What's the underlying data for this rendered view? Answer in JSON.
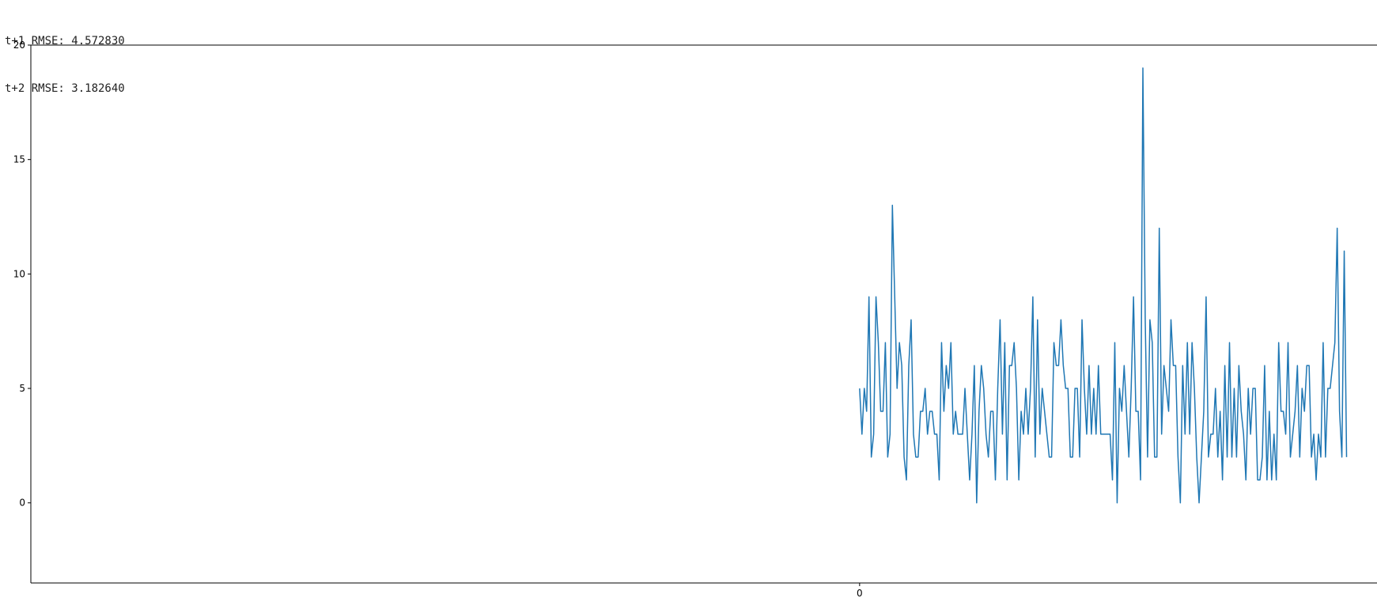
{
  "output": {
    "lines": [
      "t+1 RMSE: 4.572830",
      "t+2 RMSE: 3.182640"
    ]
  },
  "chart_data": {
    "type": "line",
    "title": "",
    "xlabel": "",
    "ylabel": "",
    "xlim": [
      -354,
      221
    ],
    "ylim": [
      -3.5,
      20
    ],
    "xticks": [
      0
    ],
    "yticks": [
      0,
      5,
      10,
      15,
      20
    ],
    "grid": false,
    "colors": {
      "series": "#1f77b4",
      "axes": "#000000"
    },
    "series": [
      {
        "values": [
          5,
          3,
          5,
          4,
          9,
          2,
          3,
          9,
          7,
          4,
          4,
          7,
          2,
          3,
          13,
          9,
          5,
          7,
          6,
          2,
          1,
          6,
          8,
          3,
          2,
          2,
          4,
          4,
          5,
          3,
          4,
          4,
          3,
          3,
          1,
          7,
          4,
          6,
          5,
          7,
          3,
          4,
          3,
          3,
          3,
          5,
          3,
          1,
          3,
          6,
          0,
          4,
          6,
          5,
          3,
          2,
          4,
          4,
          1,
          5,
          8,
          3,
          7,
          1,
          6,
          6,
          7,
          5,
          1,
          4,
          3,
          5,
          3,
          5,
          9,
          2,
          8,
          3,
          5,
          4,
          3,
          2,
          2,
          7,
          6,
          6,
          8,
          6,
          5,
          5,
          2,
          2,
          5,
          5,
          2,
          8,
          5,
          3,
          6,
          3,
          5,
          3,
          6,
          3,
          3,
          3,
          3,
          3,
          1,
          7,
          0,
          5,
          4,
          6,
          4,
          2,
          5,
          9,
          4,
          4,
          1,
          19,
          8,
          2,
          8,
          7,
          2,
          2,
          12,
          3,
          6,
          5,
          4,
          8,
          6,
          6,
          2,
          0,
          6,
          3,
          7,
          3,
          7,
          5,
          2,
          0,
          2,
          4,
          9,
          2,
          3,
          3,
          5,
          2,
          4,
          1,
          6,
          2,
          7,
          2,
          5,
          2,
          6,
          4,
          3,
          1,
          5,
          3,
          5,
          5,
          1,
          1,
          2,
          6,
          1,
          4,
          1,
          3,
          1,
          7,
          4,
          4,
          3,
          7,
          2,
          3,
          4,
          6,
          2,
          5,
          4,
          6,
          6,
          2,
          3,
          1,
          3,
          2,
          7,
          2,
          5,
          5,
          6,
          7,
          12,
          4,
          2,
          11,
          2
        ],
        "color": "#1f77b4"
      }
    ]
  }
}
